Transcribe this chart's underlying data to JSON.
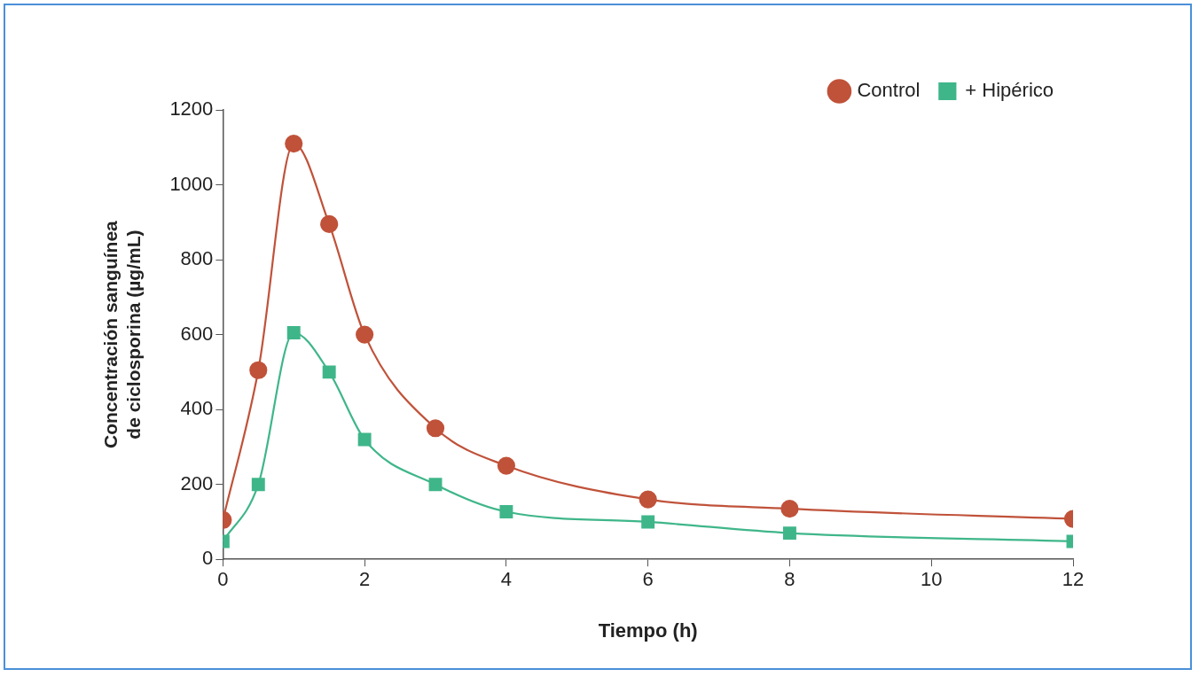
{
  "chart_data": {
    "type": "line",
    "xlabel": "Tiempo (h)",
    "ylabel": "Concentración sanguínea\nde ciclosporina (µg/mL)",
    "x": [
      0,
      0.5,
      1,
      1.5,
      2,
      3,
      4,
      6,
      8,
      12
    ],
    "series": [
      {
        "name": "Control",
        "color": "#c0523a",
        "marker": "circle",
        "values": [
          105,
          505,
          1110,
          895,
          600,
          350,
          250,
          160,
          135,
          108
        ]
      },
      {
        "name": "+ Hipérico",
        "color": "#3fb68a",
        "marker": "square",
        "values": [
          48,
          200,
          605,
          500,
          320,
          200,
          127,
          100,
          70,
          48
        ]
      }
    ],
    "xlim": [
      0,
      12
    ],
    "xticks": [
      0,
      2,
      4,
      6,
      8,
      10,
      12
    ],
    "ylim": [
      0,
      1200
    ],
    "yticks": [
      0,
      200,
      400,
      600,
      800,
      1000,
      1200
    ],
    "grid": false,
    "legend": "top right",
    "line_style": "solid"
  }
}
